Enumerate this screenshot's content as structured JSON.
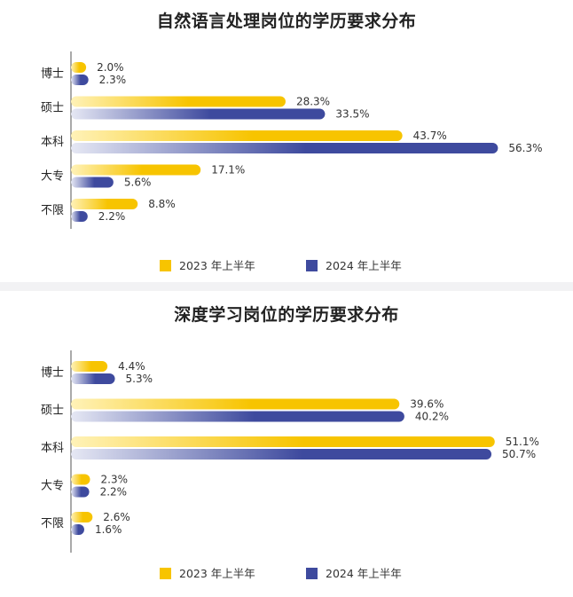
{
  "colors": {
    "series_2023": "#F7C400",
    "series_2024": "#3E4A9E",
    "fade_2023": "#FFF2B8",
    "fade_2024": "#E6E8F4"
  },
  "chart_data": [
    {
      "type": "bar",
      "orientation": "horizontal",
      "title": "自然语言处理岗位的学历要求分布",
      "categories": [
        "博士",
        "硕士",
        "本科",
        "大专",
        "不限"
      ],
      "series": [
        {
          "name": "2023 年上半年",
          "values": [
            2.0,
            28.3,
            43.7,
            17.1,
            8.8
          ],
          "labels": [
            "2.0%",
            "28.3%",
            "43.7%",
            "17.1%",
            "8.8%"
          ]
        },
        {
          "name": "2024 年上半年",
          "values": [
            2.3,
            33.5,
            56.3,
            5.6,
            2.2
          ],
          "labels": [
            "2.3%",
            "33.5%",
            "56.3%",
            "5.6%",
            "2.2%"
          ]
        }
      ],
      "legend_position": "bottom",
      "grid": false
    },
    {
      "type": "bar",
      "orientation": "horizontal",
      "title": "深度学习岗位的学历要求分布",
      "categories": [
        "博士",
        "硕士",
        "本科",
        "大专",
        "不限"
      ],
      "series": [
        {
          "name": "2023 年上半年",
          "values": [
            4.4,
            39.6,
            51.1,
            2.3,
            2.6
          ],
          "labels": [
            "4.4%",
            "39.6%",
            "51.1%",
            "2.3%",
            "2.6%"
          ]
        },
        {
          "name": "2024 年上半年",
          "values": [
            5.3,
            40.2,
            50.7,
            2.2,
            1.6
          ],
          "labels": [
            "5.3%",
            "40.2%",
            "50.7%",
            "2.2%",
            "1.6%"
          ]
        }
      ],
      "legend_position": "bottom",
      "grid": false
    }
  ]
}
